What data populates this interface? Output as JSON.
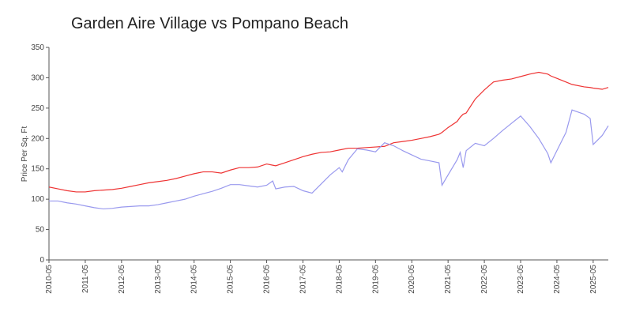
{
  "chart_data": {
    "type": "line",
    "title": "Garden Aire Village vs Pompano Beach",
    "y_label": "Price Per Sq. Ft",
    "x": [
      "2010-05",
      "2010-08",
      "2010-11",
      "2011-02",
      "2011-05",
      "2011-08",
      "2011-11",
      "2012-02",
      "2012-05",
      "2012-08",
      "2012-11",
      "2013-02",
      "2013-05",
      "2013-08",
      "2013-11",
      "2014-02",
      "2014-05",
      "2014-08",
      "2014-11",
      "2015-02",
      "2015-05",
      "2015-08",
      "2015-11",
      "2016-02",
      "2016-05",
      "2016-07",
      "2016-08",
      "2016-11",
      "2017-02",
      "2017-05",
      "2017-08",
      "2017-11",
      "2018-02",
      "2018-05",
      "2018-06",
      "2018-08",
      "2018-11",
      "2019-02",
      "2019-05",
      "2019-08",
      "2019-11",
      "2020-02",
      "2020-05",
      "2020-08",
      "2020-11",
      "2021-02",
      "2021-03",
      "2021-05",
      "2021-08",
      "2021-09",
      "2021-10",
      "2021-11",
      "2022-02",
      "2022-05",
      "2022-08",
      "2022-11",
      "2023-02",
      "2023-05",
      "2023-08",
      "2023-11",
      "2024-02",
      "2024-03",
      "2024-05",
      "2024-08",
      "2024-10",
      "2025-02",
      "2025-04",
      "2025-05",
      "2025-08",
      "2025-10"
    ],
    "series": [
      {
        "color": "#ee3333",
        "values": [
          120,
          117,
          114,
          112,
          112,
          114,
          115,
          116,
          118,
          121,
          124,
          127,
          129,
          131,
          134,
          138,
          142,
          145,
          145,
          143,
          148,
          152,
          152,
          153,
          158,
          156,
          155,
          160,
          165,
          170,
          174,
          177,
          178,
          181,
          182,
          184,
          184,
          185,
          186,
          187,
          193,
          195,
          197,
          200,
          203,
          207,
          210,
          218,
          228,
          235,
          240,
          242,
          265,
          280,
          293,
          296,
          298,
          302,
          306,
          309,
          306,
          303,
          299,
          293,
          289,
          285,
          284,
          283,
          281,
          284
        ]
      },
      {
        "color": "#9999ee",
        "values": [
          97,
          97,
          94,
          92,
          89,
          86,
          84,
          85,
          87,
          88,
          89,
          89,
          91,
          94,
          97,
          100,
          105,
          109,
          113,
          118,
          124,
          124,
          122,
          120,
          123,
          130,
          117,
          120,
          121,
          114,
          110,
          125,
          140,
          152,
          145,
          165,
          183,
          181,
          178,
          193,
          188,
          180,
          173,
          166,
          163,
          160,
          123,
          140,
          165,
          177,
          152,
          180,
          192,
          188,
          200,
          213,
          225,
          237,
          220,
          200,
          175,
          160,
          180,
          210,
          247,
          240,
          233,
          190,
          205,
          221
        ]
      }
    ],
    "xlim": [
      "2010-05",
      "2025-10"
    ],
    "xticks": [
      "2010-05",
      "2011-05",
      "2012-05",
      "2013-05",
      "2014-05",
      "2015-05",
      "2016-05",
      "2017-05",
      "2018-05",
      "2019-05",
      "2020-05",
      "2021-05",
      "2022-05",
      "2023-05",
      "2024-05",
      "2025-05"
    ],
    "ylim": [
      0,
      350
    ],
    "yticks": [
      0,
      50,
      100,
      150,
      200,
      250,
      300,
      350
    ]
  }
}
